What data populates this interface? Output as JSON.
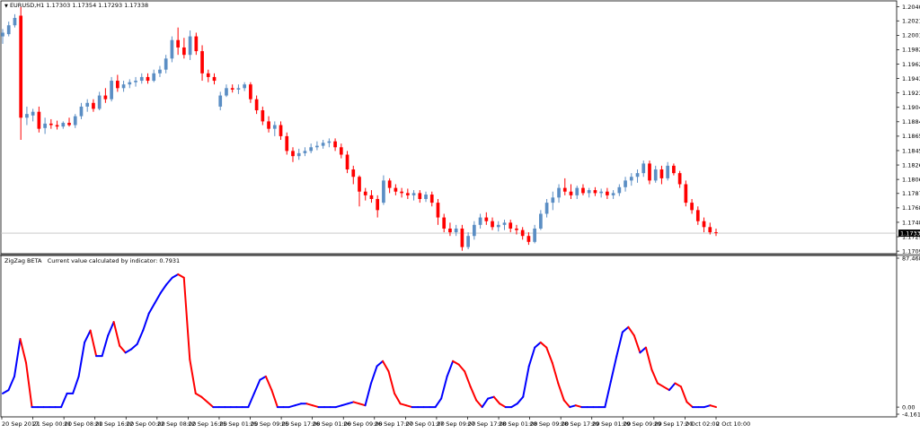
{
  "symbol_label": "EURUSD,H1",
  "ohlc_values": "1.17303 1.17354 1.17293 1.17338",
  "indicator_name": "ZigZag BETA",
  "indicator_caption": "Current value calculated by indicator: 0.7931",
  "colors": {
    "bull": "#5b8ec4",
    "bear": "#ff0000",
    "zigzag_up": "#0000ff",
    "zigzag_down": "#ff0000",
    "grid": "#a0a0a0",
    "price_line": "#c0c0c0",
    "badge_bg": "#000000",
    "badge_fg": "#ffffff"
  },
  "chart_data": [
    {
      "type": "candlestick",
      "title": "EURUSD,H1",
      "y_tick_labels": [
        "1.20400",
        "1.20210",
        "1.20015",
        "1.19820",
        "1.19625",
        "1.19430",
        "1.19235",
        "1.19040",
        "1.18845",
        "1.18650",
        "1.18455",
        "1.18260",
        "1.18065",
        "1.17875",
        "1.17680",
        "1.17485",
        "1.17290",
        "1.17095"
      ],
      "ylim": [
        1.1706,
        1.2048
      ],
      "current_price": "1.17338",
      "current_price_value": 1.17338,
      "candles": [
        {
          "o": 1.2,
          "h": 1.201,
          "l": 1.199,
          "c": 1.2005
        },
        {
          "o": 1.2003,
          "h": 1.202,
          "l": 1.2,
          "c": 1.2015
        },
        {
          "o": 1.2015,
          "h": 1.203,
          "l": 1.2012,
          "c": 1.2025
        },
        {
          "o": 1.2028,
          "h": 1.204,
          "l": 1.186,
          "c": 1.189
        },
        {
          "o": 1.189,
          "h": 1.1905,
          "l": 1.188,
          "c": 1.1895
        },
        {
          "o": 1.1893,
          "h": 1.1902,
          "l": 1.1885,
          "c": 1.1898
        },
        {
          "o": 1.1898,
          "h": 1.1905,
          "l": 1.187,
          "c": 1.1875
        },
        {
          "o": 1.1876,
          "h": 1.189,
          "l": 1.1868,
          "c": 1.1882
        },
        {
          "o": 1.1882,
          "h": 1.1888,
          "l": 1.1875,
          "c": 1.188
        },
        {
          "o": 1.188,
          "h": 1.1886,
          "l": 1.1874,
          "c": 1.1878
        },
        {
          "o": 1.1878,
          "h": 1.1885,
          "l": 1.1875,
          "c": 1.1883
        },
        {
          "o": 1.1883,
          "h": 1.189,
          "l": 1.1878,
          "c": 1.188
        },
        {
          "o": 1.188,
          "h": 1.1895,
          "l": 1.1876,
          "c": 1.1892
        },
        {
          "o": 1.1892,
          "h": 1.191,
          "l": 1.1888,
          "c": 1.1905
        },
        {
          "o": 1.1905,
          "h": 1.1915,
          "l": 1.1898,
          "c": 1.191
        },
        {
          "o": 1.191,
          "h": 1.1915,
          "l": 1.1898,
          "c": 1.1902
        },
        {
          "o": 1.1902,
          "h": 1.1925,
          "l": 1.19,
          "c": 1.192
        },
        {
          "o": 1.192,
          "h": 1.193,
          "l": 1.191,
          "c": 1.1915
        },
        {
          "o": 1.1915,
          "h": 1.1945,
          "l": 1.1912,
          "c": 1.194
        },
        {
          "o": 1.194,
          "h": 1.1948,
          "l": 1.1925,
          "c": 1.193
        },
        {
          "o": 1.193,
          "h": 1.194,
          "l": 1.1925,
          "c": 1.1935
        },
        {
          "o": 1.1935,
          "h": 1.1942,
          "l": 1.193,
          "c": 1.1938
        },
        {
          "o": 1.1938,
          "h": 1.1945,
          "l": 1.1932,
          "c": 1.194
        },
        {
          "o": 1.194,
          "h": 1.195,
          "l": 1.1936,
          "c": 1.1945
        },
        {
          "o": 1.1945,
          "h": 1.195,
          "l": 1.1936,
          "c": 1.194
        },
        {
          "o": 1.194,
          "h": 1.1955,
          "l": 1.1938,
          "c": 1.195
        },
        {
          "o": 1.195,
          "h": 1.196,
          "l": 1.1945,
          "c": 1.1955
        },
        {
          "o": 1.1955,
          "h": 1.1975,
          "l": 1.195,
          "c": 1.197
        },
        {
          "o": 1.197,
          "h": 1.2,
          "l": 1.1965,
          "c": 1.1995
        },
        {
          "o": 1.1995,
          "h": 1.2012,
          "l": 1.1975,
          "c": 1.1985
        },
        {
          "o": 1.1985,
          "h": 1.1998,
          "l": 1.197,
          "c": 1.1975
        },
        {
          "o": 1.1975,
          "h": 1.2008,
          "l": 1.1968,
          "c": 1.2
        },
        {
          "o": 1.2,
          "h": 1.2005,
          "l": 1.1975,
          "c": 1.198
        },
        {
          "o": 1.198,
          "h": 1.1988,
          "l": 1.194,
          "c": 1.195
        },
        {
          "o": 1.195,
          "h": 1.1955,
          "l": 1.1938,
          "c": 1.1945
        },
        {
          "o": 1.1945,
          "h": 1.195,
          "l": 1.1935,
          "c": 1.194
        },
        {
          "o": 1.1905,
          "h": 1.1925,
          "l": 1.19,
          "c": 1.192
        },
        {
          "o": 1.192,
          "h": 1.1935,
          "l": 1.1918,
          "c": 1.193
        },
        {
          "o": 1.193,
          "h": 1.1935,
          "l": 1.1924,
          "c": 1.1928
        },
        {
          "o": 1.1928,
          "h": 1.1935,
          "l": 1.1922,
          "c": 1.193
        },
        {
          "o": 1.193,
          "h": 1.1938,
          "l": 1.1926,
          "c": 1.1935
        },
        {
          "o": 1.1935,
          "h": 1.1938,
          "l": 1.191,
          "c": 1.1915
        },
        {
          "o": 1.1915,
          "h": 1.192,
          "l": 1.1895,
          "c": 1.19
        },
        {
          "o": 1.19,
          "h": 1.1905,
          "l": 1.188,
          "c": 1.1885
        },
        {
          "o": 1.1885,
          "h": 1.1892,
          "l": 1.187,
          "c": 1.1875
        },
        {
          "o": 1.1875,
          "h": 1.1885,
          "l": 1.1865,
          "c": 1.188
        },
        {
          "o": 1.188,
          "h": 1.1885,
          "l": 1.186,
          "c": 1.1865
        },
        {
          "o": 1.1865,
          "h": 1.187,
          "l": 1.184,
          "c": 1.1845
        },
        {
          "o": 1.1845,
          "h": 1.185,
          "l": 1.183,
          "c": 1.1838
        },
        {
          "o": 1.1838,
          "h": 1.1848,
          "l": 1.1833,
          "c": 1.1842
        },
        {
          "o": 1.1842,
          "h": 1.185,
          "l": 1.1838,
          "c": 1.1845
        },
        {
          "o": 1.1845,
          "h": 1.1855,
          "l": 1.1842,
          "c": 1.185
        },
        {
          "o": 1.185,
          "h": 1.1858,
          "l": 1.1846,
          "c": 1.1852
        },
        {
          "o": 1.1852,
          "h": 1.186,
          "l": 1.1848,
          "c": 1.1856
        },
        {
          "o": 1.1856,
          "h": 1.1862,
          "l": 1.185,
          "c": 1.1858
        },
        {
          "o": 1.1858,
          "h": 1.1862,
          "l": 1.1845,
          "c": 1.185
        },
        {
          "o": 1.185,
          "h": 1.1855,
          "l": 1.1835,
          "c": 1.184
        },
        {
          "o": 1.184,
          "h": 1.1845,
          "l": 1.1815,
          "c": 1.182
        },
        {
          "o": 1.182,
          "h": 1.1825,
          "l": 1.18,
          "c": 1.181
        },
        {
          "o": 1.181,
          "h": 1.1812,
          "l": 1.177,
          "c": 1.179
        },
        {
          "o": 1.179,
          "h": 1.1795,
          "l": 1.1778,
          "c": 1.1785
        },
        {
          "o": 1.1785,
          "h": 1.1792,
          "l": 1.1775,
          "c": 1.178
        },
        {
          "o": 1.178,
          "h": 1.1785,
          "l": 1.1755,
          "c": 1.1765
        },
        {
          "o": 1.1775,
          "h": 1.1812,
          "l": 1.1772,
          "c": 1.1805
        },
        {
          "o": 1.1805,
          "h": 1.1808,
          "l": 1.1788,
          "c": 1.1795
        },
        {
          "o": 1.1795,
          "h": 1.18,
          "l": 1.1785,
          "c": 1.179
        },
        {
          "o": 1.179,
          "h": 1.1795,
          "l": 1.1782,
          "c": 1.1788
        },
        {
          "o": 1.1788,
          "h": 1.1794,
          "l": 1.178,
          "c": 1.1785
        },
        {
          "o": 1.1785,
          "h": 1.1792,
          "l": 1.1778,
          "c": 1.1788
        },
        {
          "o": 1.1788,
          "h": 1.1792,
          "l": 1.1775,
          "c": 1.178
        },
        {
          "o": 1.178,
          "h": 1.179,
          "l": 1.1776,
          "c": 1.1786
        },
        {
          "o": 1.1786,
          "h": 1.179,
          "l": 1.177,
          "c": 1.1775
        },
        {
          "o": 1.1775,
          "h": 1.178,
          "l": 1.1745,
          "c": 1.1755
        },
        {
          "o": 1.1755,
          "h": 1.176,
          "l": 1.1735,
          "c": 1.174
        },
        {
          "o": 1.174,
          "h": 1.1748,
          "l": 1.173,
          "c": 1.1735
        },
        {
          "o": 1.1735,
          "h": 1.1745,
          "l": 1.173,
          "c": 1.174
        },
        {
          "o": 1.174,
          "h": 1.1745,
          "l": 1.171,
          "c": 1.1715
        },
        {
          "o": 1.1715,
          "h": 1.1735,
          "l": 1.1712,
          "c": 1.173
        },
        {
          "o": 1.173,
          "h": 1.175,
          "l": 1.1725,
          "c": 1.1745
        },
        {
          "o": 1.1745,
          "h": 1.176,
          "l": 1.174,
          "c": 1.1755
        },
        {
          "o": 1.1755,
          "h": 1.1762,
          "l": 1.1745,
          "c": 1.175
        },
        {
          "o": 1.175,
          "h": 1.1755,
          "l": 1.1738,
          "c": 1.1742
        },
        {
          "o": 1.1742,
          "h": 1.175,
          "l": 1.1736,
          "c": 1.1745
        },
        {
          "o": 1.1745,
          "h": 1.1752,
          "l": 1.1738,
          "c": 1.1748
        },
        {
          "o": 1.1748,
          "h": 1.1752,
          "l": 1.1735,
          "c": 1.174
        },
        {
          "o": 1.174,
          "h": 1.1745,
          "l": 1.1732,
          "c": 1.1738
        },
        {
          "o": 1.1738,
          "h": 1.1742,
          "l": 1.1725,
          "c": 1.173
        },
        {
          "o": 1.173,
          "h": 1.1735,
          "l": 1.1718,
          "c": 1.1722
        },
        {
          "o": 1.1722,
          "h": 1.1745,
          "l": 1.172,
          "c": 1.174
        },
        {
          "o": 1.174,
          "h": 1.1765,
          "l": 1.1738,
          "c": 1.176
        },
        {
          "o": 1.176,
          "h": 1.178,
          "l": 1.1755,
          "c": 1.1775
        },
        {
          "o": 1.1775,
          "h": 1.179,
          "l": 1.1765,
          "c": 1.1782
        },
        {
          "o": 1.1782,
          "h": 1.18,
          "l": 1.1775,
          "c": 1.1795
        },
        {
          "o": 1.1795,
          "h": 1.1808,
          "l": 1.1785,
          "c": 1.179
        },
        {
          "o": 1.179,
          "h": 1.18,
          "l": 1.178,
          "c": 1.1785
        },
        {
          "o": 1.1785,
          "h": 1.1798,
          "l": 1.178,
          "c": 1.1795
        },
        {
          "o": 1.1795,
          "h": 1.18,
          "l": 1.1785,
          "c": 1.1788
        },
        {
          "o": 1.1788,
          "h": 1.1795,
          "l": 1.1782,
          "c": 1.1792
        },
        {
          "o": 1.1792,
          "h": 1.1796,
          "l": 1.1784,
          "c": 1.1788
        },
        {
          "o": 1.1788,
          "h": 1.1794,
          "l": 1.1782,
          "c": 1.179
        },
        {
          "o": 1.179,
          "h": 1.1795,
          "l": 1.178,
          "c": 1.1785
        },
        {
          "o": 1.1785,
          "h": 1.1792,
          "l": 1.178,
          "c": 1.1788
        },
        {
          "o": 1.1788,
          "h": 1.18,
          "l": 1.1784,
          "c": 1.1796
        },
        {
          "o": 1.1796,
          "h": 1.181,
          "l": 1.179,
          "c": 1.1805
        },
        {
          "o": 1.1805,
          "h": 1.1815,
          "l": 1.1798,
          "c": 1.181
        },
        {
          "o": 1.181,
          "h": 1.182,
          "l": 1.1802,
          "c": 1.1815
        },
        {
          "o": 1.1815,
          "h": 1.1832,
          "l": 1.181,
          "c": 1.1828
        },
        {
          "o": 1.1828,
          "h": 1.1832,
          "l": 1.18,
          "c": 1.1805
        },
        {
          "o": 1.1805,
          "h": 1.1825,
          "l": 1.1802,
          "c": 1.182
        },
        {
          "o": 1.182,
          "h": 1.1825,
          "l": 1.18,
          "c": 1.1808
        },
        {
          "o": 1.1808,
          "h": 1.183,
          "l": 1.1805,
          "c": 1.1825
        },
        {
          "o": 1.1825,
          "h": 1.1828,
          "l": 1.1812,
          "c": 1.1815
        },
        {
          "o": 1.1815,
          "h": 1.1818,
          "l": 1.1795,
          "c": 1.18
        },
        {
          "o": 1.18,
          "h": 1.1805,
          "l": 1.177,
          "c": 1.1775
        },
        {
          "o": 1.1775,
          "h": 1.178,
          "l": 1.176,
          "c": 1.1765
        },
        {
          "o": 1.1765,
          "h": 1.177,
          "l": 1.1745,
          "c": 1.175
        },
        {
          "o": 1.175,
          "h": 1.1755,
          "l": 1.1735,
          "c": 1.1742
        },
        {
          "o": 1.1742,
          "h": 1.1748,
          "l": 1.1732,
          "c": 1.1735
        },
        {
          "o": 1.1735,
          "h": 1.174,
          "l": 1.173,
          "c": 1.1734
        }
      ]
    },
    {
      "type": "line",
      "title": "ZigZag BETA",
      "y_tick_labels": [
        "87.4684",
        "0.00",
        "-4.1612"
      ],
      "ylim": [
        -4.1612,
        87.4684
      ],
      "values": [
        8,
        10,
        18,
        40,
        26,
        0,
        0,
        0,
        0,
        0,
        0,
        8,
        8,
        18,
        38,
        45,
        30,
        30,
        42,
        50,
        36,
        32,
        34,
        37,
        45,
        55,
        61,
        67,
        72,
        76,
        78,
        76,
        28,
        8,
        6,
        3,
        0,
        0,
        0,
        0,
        0,
        0,
        0,
        8,
        16,
        18,
        10,
        0,
        0,
        0,
        1,
        2,
        2,
        1,
        0,
        0,
        0,
        0,
        1,
        2,
        3,
        2,
        1,
        14,
        24,
        27,
        21,
        8,
        2,
        1,
        0,
        0,
        0,
        0,
        0,
        5,
        18,
        27,
        25,
        21,
        12,
        4,
        0,
        5,
        6,
        2,
        0,
        0,
        2,
        6,
        24,
        35,
        38,
        35,
        26,
        14,
        4,
        0,
        1,
        0,
        0,
        0,
        0,
        0,
        15,
        30,
        44,
        47,
        42,
        32,
        35,
        22,
        14,
        12,
        10,
        14,
        12,
        3,
        0,
        0,
        0,
        1,
        0
      ]
    }
  ],
  "x_tick_labels": [
    "20 Sep 2017",
    "21 Sep 00:00",
    "21 Sep 08:00",
    "21 Sep 16:00",
    "22 Sep 00:00",
    "22 Sep 08:00",
    "22 Sep 16:00",
    "25 Sep 01:00",
    "25 Sep 09:00",
    "25 Sep 17:00",
    "26 Sep 01:00",
    "26 Sep 09:00",
    "26 Sep 17:00",
    "27 Sep 01:00",
    "27 Sep 09:00",
    "27 Sep 17:00",
    "28 Sep 01:00",
    "28 Sep 09:00",
    "28 Sep 17:00",
    "29 Sep 01:00",
    "29 Sep 09:00",
    "29 Sep 17:00",
    "2 Oct 02:00",
    "2 Oct 10:00"
  ]
}
